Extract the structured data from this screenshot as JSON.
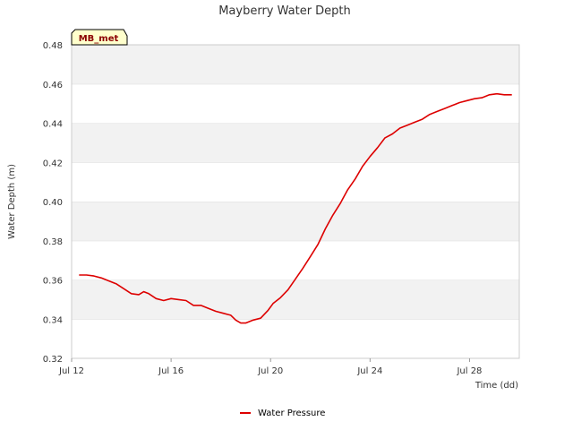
{
  "chart_data": {
    "type": "line",
    "title": "Mayberry Water Depth",
    "xlabel": "Time (dd)",
    "ylabel": "Water Depth (m)",
    "x_ticks": [
      {
        "day": 12,
        "label": "Jul 12"
      },
      {
        "day": 16,
        "label": "Jul 16"
      },
      {
        "day": 20,
        "label": "Jul 20"
      },
      {
        "day": 24,
        "label": "Jul 24"
      },
      {
        "day": 28,
        "label": "Jul 28"
      }
    ],
    "y_ticks": [
      "0.32",
      "0.34",
      "0.36",
      "0.38",
      "0.40",
      "0.42",
      "0.44",
      "0.46",
      "0.48"
    ],
    "xlim": [
      12,
      30
    ],
    "ylim": [
      0.32,
      0.48
    ],
    "grid": "horizontal bands",
    "legend_position": "bottom",
    "station_tag": "MB_met",
    "series": [
      {
        "name": "Water Pressure",
        "color": "#dd0000",
        "points": [
          [
            12.3,
            0.3625
          ],
          [
            12.6,
            0.3625
          ],
          [
            12.9,
            0.362
          ],
          [
            13.2,
            0.361
          ],
          [
            13.5,
            0.3595
          ],
          [
            13.8,
            0.358
          ],
          [
            14.1,
            0.3555
          ],
          [
            14.4,
            0.353
          ],
          [
            14.7,
            0.3525
          ],
          [
            14.9,
            0.354
          ],
          [
            15.1,
            0.353
          ],
          [
            15.4,
            0.3505
          ],
          [
            15.7,
            0.3495
          ],
          [
            16.0,
            0.3505
          ],
          [
            16.3,
            0.35
          ],
          [
            16.6,
            0.3495
          ],
          [
            16.9,
            0.347
          ],
          [
            17.2,
            0.347
          ],
          [
            17.5,
            0.3455
          ],
          [
            17.8,
            0.344
          ],
          [
            18.1,
            0.343
          ],
          [
            18.4,
            0.342
          ],
          [
            18.6,
            0.3395
          ],
          [
            18.8,
            0.338
          ],
          [
            19.0,
            0.338
          ],
          [
            19.3,
            0.3395
          ],
          [
            19.6,
            0.3405
          ],
          [
            19.9,
            0.3445
          ],
          [
            20.1,
            0.348
          ],
          [
            20.4,
            0.351
          ],
          [
            20.7,
            0.355
          ],
          [
            21.0,
            0.3605
          ],
          [
            21.3,
            0.366
          ],
          [
            21.6,
            0.372
          ],
          [
            21.9,
            0.378
          ],
          [
            22.2,
            0.386
          ],
          [
            22.5,
            0.393
          ],
          [
            22.8,
            0.399
          ],
          [
            23.1,
            0.406
          ],
          [
            23.4,
            0.4115
          ],
          [
            23.7,
            0.418
          ],
          [
            24.0,
            0.423
          ],
          [
            24.3,
            0.4275
          ],
          [
            24.6,
            0.4325
          ],
          [
            24.9,
            0.4345
          ],
          [
            25.2,
            0.4375
          ],
          [
            25.5,
            0.439
          ],
          [
            25.8,
            0.4405
          ],
          [
            26.1,
            0.442
          ],
          [
            26.4,
            0.4445
          ],
          [
            26.7,
            0.446
          ],
          [
            27.0,
            0.4475
          ],
          [
            27.3,
            0.449
          ],
          [
            27.6,
            0.4505
          ],
          [
            27.9,
            0.4515
          ],
          [
            28.2,
            0.4525
          ],
          [
            28.5,
            0.453
          ],
          [
            28.8,
            0.4545
          ],
          [
            29.1,
            0.455
          ],
          [
            29.4,
            0.4545
          ],
          [
            29.7,
            0.4545
          ]
        ]
      }
    ]
  }
}
